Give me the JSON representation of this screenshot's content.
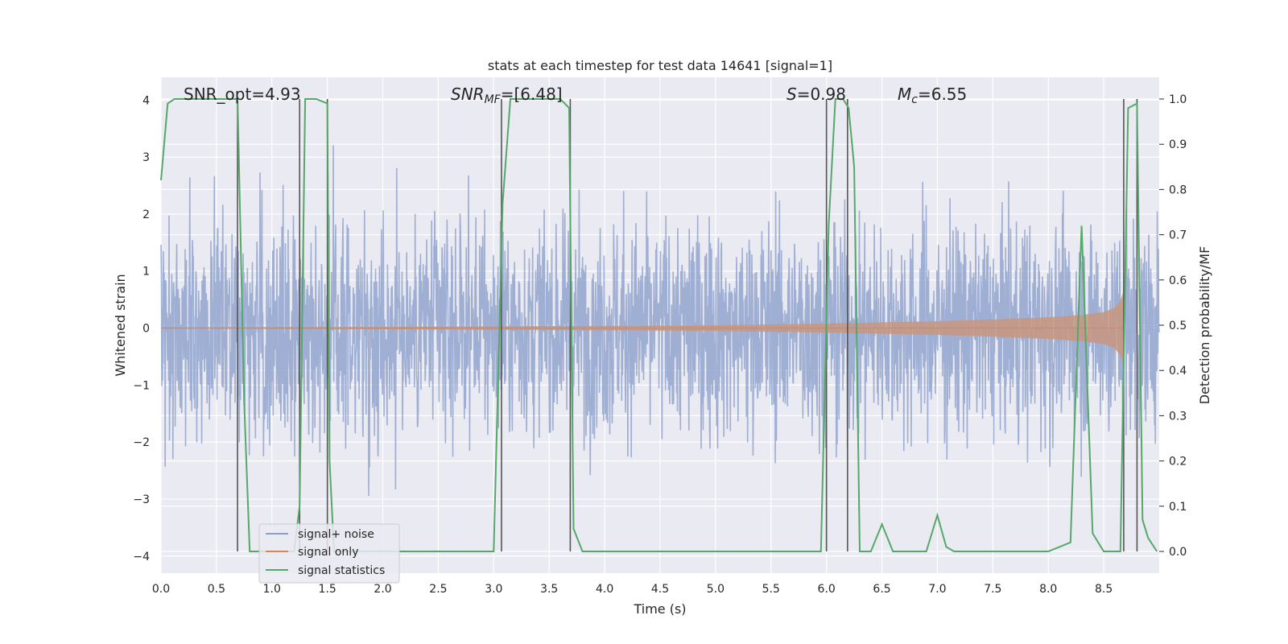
{
  "chart_data": {
    "type": "line",
    "title": "stats at each timestep for test data 14641 [signal=1]",
    "xlabel": "Time (s)",
    "ylabel": "Whitened strain",
    "ylabel_right": "Detection probability/MF",
    "xlim": [
      0.0,
      9.0
    ],
    "ylim": [
      -4.3,
      4.4
    ],
    "ylim_right": [
      -0.048,
      1.048
    ],
    "x_ticks": [
      "0.0",
      "0.5",
      "1.0",
      "1.5",
      "2.0",
      "2.5",
      "3.0",
      "3.5",
      "4.0",
      "4.5",
      "5.0",
      "5.5",
      "6.0",
      "6.5",
      "7.0",
      "7.5",
      "8.0",
      "8.5"
    ],
    "y_ticks": [
      "4",
      "3",
      "2",
      "1",
      "0",
      "−1",
      "−2",
      "−3",
      "−4"
    ],
    "y_ticks_right": [
      "1.0",
      "0.9",
      "0.8",
      "0.7",
      "0.6",
      "0.5",
      "0.4",
      "0.3",
      "0.2",
      "0.1",
      "0.0"
    ],
    "grid": true,
    "legend_position": "lower-left",
    "annotations": {
      "snr_opt": "SNR_opt=4.93",
      "snr_mf_prefix": "SNR",
      "snr_mf_sub": "MF",
      "snr_mf_suffix": "=[6.48]",
      "s_label": "S",
      "s_value": "=0.98",
      "mc_label": "M",
      "mc_sub": "c",
      "mc_value": "=6.55"
    },
    "series": [
      {
        "name": "signal+ noise",
        "color": "#8c9fcb",
        "axis": "left",
        "description_envelope": {
          "x": [
            0.0,
            9.0
          ],
          "typical_abs": 1.7,
          "peak_abs": 4.0
        }
      },
      {
        "name": "signal only",
        "color": "#dd8452",
        "axis": "left",
        "envelope": {
          "x": [
            0.0,
            2.0,
            4.0,
            5.0,
            6.0,
            7.0,
            7.5,
            8.0,
            8.3,
            8.5,
            8.6,
            8.65,
            8.68
          ],
          "amp": [
            0.01,
            0.02,
            0.04,
            0.05,
            0.08,
            0.12,
            0.15,
            0.19,
            0.23,
            0.28,
            0.36,
            0.48,
            0.65
          ]
        }
      },
      {
        "name": "signal statistics",
        "color": "#55a868",
        "axis": "right",
        "x": [
          0.0,
          0.06,
          0.12,
          0.3,
          0.5,
          0.6,
          0.69,
          0.75,
          0.8,
          1.0,
          1.2,
          1.25,
          1.3,
          1.4,
          1.5,
          1.52,
          1.56,
          2.0,
          2.5,
          3.0,
          3.08,
          3.15,
          3.3,
          3.6,
          3.68,
          3.72,
          3.8,
          4.0,
          5.0,
          5.5,
          5.95,
          6.02,
          6.08,
          6.15,
          6.2,
          6.25,
          6.3,
          6.4,
          6.5,
          6.6,
          6.8,
          6.9,
          7.0,
          7.08,
          7.15,
          7.5,
          8.0,
          8.2,
          8.3,
          8.4,
          8.5,
          8.65,
          8.72,
          8.8,
          8.85,
          8.9,
          8.98
        ],
        "values": [
          0.82,
          0.99,
          1.0,
          1.0,
          1.0,
          1.0,
          1.0,
          0.33,
          0.0,
          0.0,
          0.0,
          0.1,
          1.0,
          1.0,
          0.99,
          0.2,
          0.0,
          0.0,
          0.0,
          0.0,
          0.77,
          1.0,
          1.0,
          1.0,
          0.98,
          0.05,
          0.0,
          0.0,
          0.0,
          0.0,
          0.0,
          0.72,
          1.0,
          1.0,
          0.98,
          0.85,
          0.0,
          0.0,
          0.06,
          0.0,
          0.0,
          0.0,
          0.08,
          0.01,
          0.0,
          0.0,
          0.0,
          0.02,
          0.72,
          0.04,
          0.0,
          0.0,
          0.98,
          0.99,
          0.07,
          0.03,
          0.0
        ]
      }
    ],
    "vertical_lines_x": [
      0.69,
      1.25,
      1.5,
      3.07,
      3.69,
      6.0,
      6.19,
      8.68,
      8.8
    ]
  }
}
